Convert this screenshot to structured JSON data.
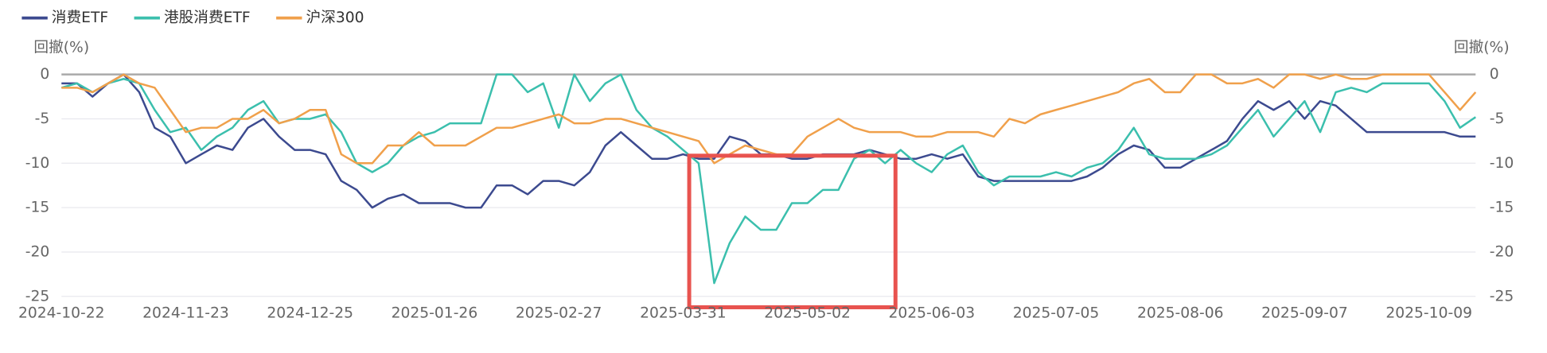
{
  "chart_data": {
    "type": "line",
    "ylabel": "回撤(%)",
    "y2label": "回撤(%)",
    "categories": [
      "2024-10-22",
      null,
      null,
      null,
      null,
      null,
      null,
      null,
      "2024-11-23",
      null,
      null,
      null,
      null,
      null,
      null,
      null,
      "2024-12-25",
      null,
      null,
      null,
      null,
      null,
      null,
      null,
      "2025-01-26",
      null,
      null,
      null,
      null,
      null,
      null,
      null,
      "2025-02-27",
      null,
      null,
      null,
      null,
      null,
      null,
      null,
      "2025-03-31",
      null,
      null,
      null,
      null,
      null,
      null,
      null,
      "2025-05-02",
      null,
      null,
      null,
      null,
      null,
      null,
      null,
      "2025-06-03",
      null,
      null,
      null,
      null,
      null,
      null,
      null,
      "2025-07-05",
      null,
      null,
      null,
      null,
      null,
      null,
      null,
      "2025-08-06",
      null,
      null,
      null,
      null,
      null,
      null,
      null,
      "2025-09-07",
      null,
      null,
      null,
      null,
      null,
      null,
      null,
      "2025-10-09",
      null,
      null,
      null
    ],
    "ylim": [
      -25,
      0
    ],
    "yticks": [
      0,
      -5,
      -10,
      -15,
      -20,
      -25
    ],
    "y2lim": [
      -25,
      0
    ],
    "y2ticks": [
      0,
      -5,
      -10,
      -15,
      -20,
      -25
    ],
    "grid": true,
    "legend": "top-left",
    "series": [
      {
        "name": "消费ETF",
        "color": "#3c4a8f",
        "values": [
          -1,
          -1,
          -2.5,
          -1,
          0,
          -2,
          -6,
          -7,
          -10,
          -9,
          -8,
          -8.5,
          -6,
          -5,
          -7,
          -8.5,
          -8.5,
          -9,
          -12,
          -13,
          -15,
          -14,
          -13.5,
          -14.5,
          -14.5,
          -14.5,
          -15,
          -15,
          -12.5,
          -12.5,
          -13.5,
          -12,
          -12,
          -12.5,
          -11,
          -8,
          -6.5,
          -8,
          -9.5,
          -9.5,
          -9,
          -9.5,
          -9.5,
          -7,
          -7.5,
          -9,
          -9,
          -9.5,
          -9.5,
          -9,
          -9,
          -9,
          -8.5,
          -9,
          -9.5,
          -9.5,
          -9,
          -9.5,
          -9,
          -11.5,
          -12,
          -12,
          -12,
          -12,
          -12,
          -12,
          -11.5,
          -10.5,
          -9,
          -8,
          -8.5,
          -10.5,
          -10.5,
          -9.5,
          -8.5,
          -7.5,
          -5,
          -3,
          -4,
          -3,
          -5,
          -3,
          -3.5,
          -5,
          -6.5,
          -6.5,
          -6.5,
          -6.5,
          -6.5,
          -6.5,
          -7,
          -7
        ]
      },
      {
        "name": "港股消费ETF",
        "color": "#3bbfad",
        "values": [
          -1.5,
          -1,
          -2,
          -1,
          -0.5,
          -1,
          -4,
          -6.5,
          -6,
          -8.5,
          -7,
          -6,
          -4,
          -3,
          -5.5,
          -5,
          -5,
          -4.5,
          -6.5,
          -10,
          -11,
          -10,
          -8,
          -7,
          -6.5,
          -5.5,
          -5.5,
          -5.5,
          0,
          0,
          -2,
          -1,
          -6,
          0,
          -3,
          -1,
          0,
          -4,
          -6,
          -7,
          -8.5,
          -10,
          -23.5,
          -19,
          -16,
          -17.5,
          -17.5,
          -14.5,
          -14.5,
          -13,
          -13,
          -9.5,
          -8.5,
          -10,
          -8.5,
          -10,
          -11,
          -9,
          -8,
          -11,
          -12.5,
          -11.5,
          -11.5,
          -11.5,
          -11,
          -11.5,
          -10.5,
          -10,
          -8.5,
          -6,
          -9,
          -9.5,
          -9.5,
          -9.5,
          -9,
          -8,
          -6,
          -4,
          -7,
          -5,
          -3,
          -6.5,
          -2,
          -1.5,
          -2,
          -1,
          -1,
          -1,
          -1,
          -3,
          -6,
          -4.8
        ]
      },
      {
        "name": "沪深300",
        "color": "#f0a04b",
        "values": [
          -1.5,
          -1.5,
          -2,
          -1,
          0,
          -1,
          -1.5,
          -4,
          -6.5,
          -6,
          -6,
          -5,
          -5,
          -4,
          -5.5,
          -5,
          -4,
          -4,
          -9,
          -10,
          -10,
          -8,
          -8,
          -6.5,
          -8,
          -8,
          -8,
          -7,
          -6,
          -6,
          -5.5,
          -5,
          -4.5,
          -5.5,
          -5.5,
          -5,
          -5,
          -5.5,
          -6,
          -6.5,
          -7,
          -7.5,
          -10,
          -9,
          -8,
          -8.5,
          -9,
          -9,
          -7,
          -6,
          -5,
          -6,
          -6.5,
          -6.5,
          -6.5,
          -7,
          -7,
          -6.5,
          -6.5,
          -6.5,
          -7,
          -5,
          -5.5,
          -4.5,
          -4,
          -3.5,
          -3,
          -2.5,
          -2,
          -1,
          -0.5,
          -2,
          -2,
          0,
          0,
          -1,
          -1,
          -0.5,
          -1.5,
          0,
          0,
          -0.5,
          0,
          -0.5,
          -0.5,
          0,
          0,
          0,
          0,
          -2,
          -4,
          -2
        ]
      }
    ]
  }
}
